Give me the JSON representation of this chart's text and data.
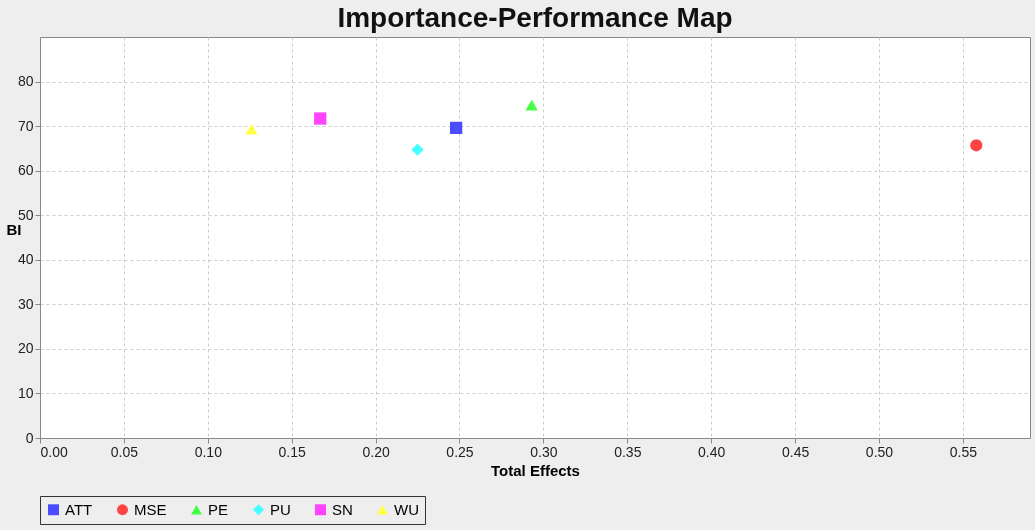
{
  "chart_data": {
    "type": "scatter",
    "title": "Importance-Performance Map",
    "xlabel": "Total Effects",
    "ylabel": "BI",
    "xlim": [
      0,
      0.59
    ],
    "xticks": [
      {
        "value": 0,
        "label": "0.00"
      },
      0.05,
      {
        "value": 0.1,
        "label": "0.10"
      },
      0.15,
      {
        "value": 0.2,
        "label": "0.20"
      },
      0.25,
      {
        "value": 0.3,
        "label": "0.30"
      },
      0.35,
      {
        "value": 0.4,
        "label": "0.40"
      },
      0.45,
      {
        "value": 0.5,
        "label": "0.50"
      },
      0.55
    ],
    "ylim": [
      0,
      90
    ],
    "yticks": [
      0,
      10,
      20,
      30,
      40,
      50,
      60,
      70,
      80
    ],
    "grid": true,
    "legend": "bottom",
    "series": [
      {
        "name": "ATT",
        "color": "#4c4cff",
        "marker": "square",
        "x": [
          0.248
        ],
        "values": [
          69.6
        ]
      },
      {
        "name": "MSE",
        "color": "#ff4444",
        "marker": "circle",
        "x": [
          0.558
        ],
        "values": [
          65.7
        ]
      },
      {
        "name": "PE",
        "color": "#44ff44",
        "marker": "triangle",
        "x": [
          0.293
        ],
        "values": [
          74.7
        ]
      },
      {
        "name": "PU",
        "color": "#44ffff",
        "marker": "diamond",
        "x": [
          0.225
        ],
        "values": [
          64.7
        ]
      },
      {
        "name": "SN",
        "color": "#ff44ff",
        "marker": "square",
        "x": [
          0.167
        ],
        "values": [
          71.7
        ]
      },
      {
        "name": "WU",
        "color": "#ffff44",
        "marker": "triangle",
        "x": [
          0.126
        ],
        "values": [
          69.3
        ]
      }
    ]
  }
}
